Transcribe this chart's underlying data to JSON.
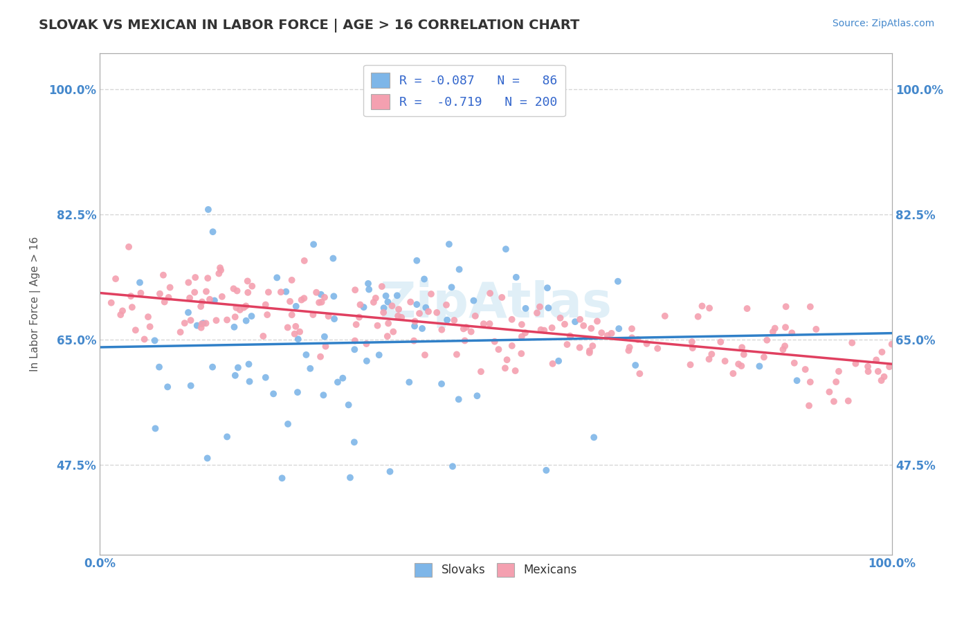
{
  "title": "SLOVAK VS MEXICAN IN LABOR FORCE | AGE > 16 CORRELATION CHART",
  "source_text": "Source: ZipAtlas.com",
  "xlabel": "",
  "ylabel": "In Labor Force | Age > 16",
  "xlim": [
    0.0,
    1.0
  ],
  "ylim": [
    0.35,
    1.05
  ],
  "yticks": [
    0.475,
    0.65,
    0.825,
    1.0
  ],
  "ytick_labels": [
    "47.5%",
    "65.0%",
    "82.5%",
    "100.0%"
  ],
  "xtick_labels": [
    "0.0%",
    "100.0%"
  ],
  "xticks": [
    0.0,
    1.0
  ],
  "slovak_color": "#7EB6E8",
  "mexican_color": "#F4A0B0",
  "slovak_line_color": "#3080C8",
  "mexican_line_color": "#E04060",
  "watermark": "ZipAtlas",
  "slovak_r": -0.087,
  "slovak_n": 86,
  "mexican_r": -0.719,
  "mexican_n": 200,
  "background_color": "#FFFFFF",
  "grid_color": "#CCCCCC",
  "title_color": "#333333",
  "axis_label_color": "#555555",
  "tick_label_color": "#4488CC",
  "legend_r_color": "#3366CC",
  "title_fontsize": 14,
  "axis_label_fontsize": 11
}
